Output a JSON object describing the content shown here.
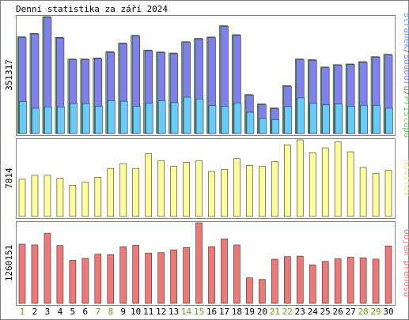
{
  "chart_data": {
    "type": "bar",
    "title": "Denní statistika za září 2024",
    "categories": [
      "1",
      "2",
      "3",
      "4",
      "5",
      "6",
      "7",
      "8",
      "9",
      "10",
      "11",
      "12",
      "13",
      "14",
      "15",
      "16",
      "17",
      "18",
      "19",
      "20",
      "21",
      "22",
      "23",
      "24",
      "25",
      "26",
      "27",
      "28",
      "29",
      "30"
    ],
    "weekend_days": [
      1,
      7,
      8,
      14,
      15,
      21,
      22,
      28,
      29
    ],
    "colors": {
      "frame": "#808080",
      "label_text": "#000000",
      "weekday_label": "#000000",
      "weekend_label": "#66aa00",
      "pages": "#8080ee",
      "files": "#66ccff",
      "hits": "#66cc66",
      "visits": "#ffff99",
      "volume": "#ee7777"
    },
    "panels": [
      {
        "max_label": "351317",
        "side_label_parts": [
          {
            "text": "Stránek",
            "color": "#6699ff"
          },
          {
            "text": "/",
            "color": "#666666"
          },
          {
            "text": "Souborů",
            "color": "#8080ee"
          },
          {
            "text": "/",
            "color": "#666666"
          },
          {
            "text": "Přístupů",
            "color": "#66cc66"
          }
        ],
        "series": [
          {
            "name": "Přístupů",
            "color_key": "hits",
            "values": [
              291000,
              301000,
              351317,
              289000,
              224000,
              224000,
              227000,
              246000,
              272000,
              295000,
              251000,
              245000,
              242000,
              276000,
              286000,
              290000,
              324000,
              297000,
              117000,
              89000,
              77000,
              144000,
              224000,
              222000,
              200000,
              207000,
              209000,
              216000,
              231000,
              238000
            ]
          },
          {
            "name": "Souborů",
            "color_key": "pages",
            "values": [
              288000,
              299000,
              349000,
              287000,
              222000,
              222000,
              225000,
              244000,
              270000,
              293000,
              249000,
              243000,
              240000,
              274000,
              284000,
              288000,
              322000,
              295000,
              115000,
              87000,
              75000,
              142000,
              222000,
              220000,
              198000,
              205000,
              207000,
              214000,
              229000,
              236000
            ]
          },
          {
            "name": "Stránek",
            "color_key": "files",
            "values": [
              96000,
              76000,
              80000,
              80000,
              90000,
              90000,
              82000,
              99000,
              97000,
              82000,
              91000,
              99000,
              93000,
              109000,
              104000,
              84000,
              82000,
              92000,
              64000,
              45000,
              42000,
              81000,
              107000,
              91000,
              86000,
              89000,
              82000,
              85000,
              85000,
              76000
            ]
          }
        ]
      },
      {
        "max_label": "7814",
        "side_label_parts": [
          {
            "text": "Návštěv",
            "color": "#e6e699"
          }
        ],
        "series": [
          {
            "name": "Návštěv",
            "color_key": "visits",
            "values": [
              3800,
              4200,
              4200,
              3900,
              3200,
              3500,
              4000,
              4900,
              5400,
              4900,
              6400,
              5700,
              5100,
              5500,
              5700,
              4600,
              4800,
              5900,
              5200,
              5100,
              5600,
              7300,
              7814,
              6500,
              7000,
              7600,
              6600,
              5000,
              4400,
              4700
            ]
          }
        ]
      },
      {
        "max_label": "1260151",
        "side_label_parts": [
          {
            "text": "Objem přenosu",
            "color": "#ee7777"
          }
        ],
        "series": [
          {
            "name": "Objem přenosu",
            "color_key": "volume",
            "values": [
              927000,
              915000,
              1098000,
              906000,
              674000,
              704000,
              770000,
              762000,
              885000,
              909000,
              788000,
              794000,
              838000,
              874000,
              1260151,
              888000,
              1009000,
              915000,
              400000,
              374000,
              692000,
              733000,
              740000,
              603000,
              657000,
              697000,
              724000,
              714000,
              693000,
              898000
            ]
          }
        ]
      }
    ]
  }
}
